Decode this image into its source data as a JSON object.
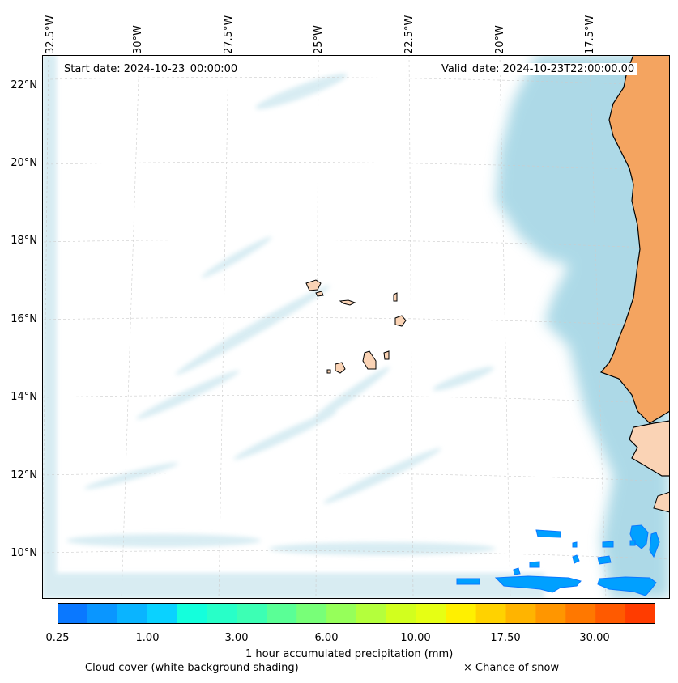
{
  "map": {
    "start_date": "Start date: 2024-10-23_00:00:00",
    "valid_date": "Valid_date: 2024-10-23T22:00:00.00",
    "lon_labels": [
      "32.5°W",
      "30°W",
      "27.5°W",
      "25°W",
      "22.5°W",
      "20°W",
      "17.5°W"
    ],
    "lat_labels": [
      "22°N",
      "20°N",
      "18°N",
      "16°N",
      "14°N",
      "12°N",
      "10°N"
    ],
    "colors": {
      "ocean": "#ffffff",
      "cloud": "#a9d8e6",
      "land": "#f4a460",
      "island": "#fad3b5",
      "coast": "#000000",
      "precip": "#00a0ff"
    }
  },
  "colorbar": {
    "label": "1 hour accumulated precipitation (mm)",
    "tick_labels": [
      "0.25",
      "1.00",
      "3.00",
      "6.00",
      "10.00",
      "17.50",
      "30.00"
    ],
    "colors": [
      "#0a78ff",
      "#0a96ff",
      "#0ab4ff",
      "#0ad2ff",
      "#14ffdc",
      "#28ffc8",
      "#3cffb4",
      "#5aff96",
      "#78ff78",
      "#96ff5a",
      "#b4ff3c",
      "#d2ff1e",
      "#e6ff14",
      "#fff000",
      "#ffd200",
      "#ffb400",
      "#ff9600",
      "#ff7800",
      "#ff5a00",
      "#ff3c00"
    ]
  },
  "legend": {
    "cloud_cover": "Cloud cover (white background shading)",
    "snow": "× Chance of snow"
  }
}
